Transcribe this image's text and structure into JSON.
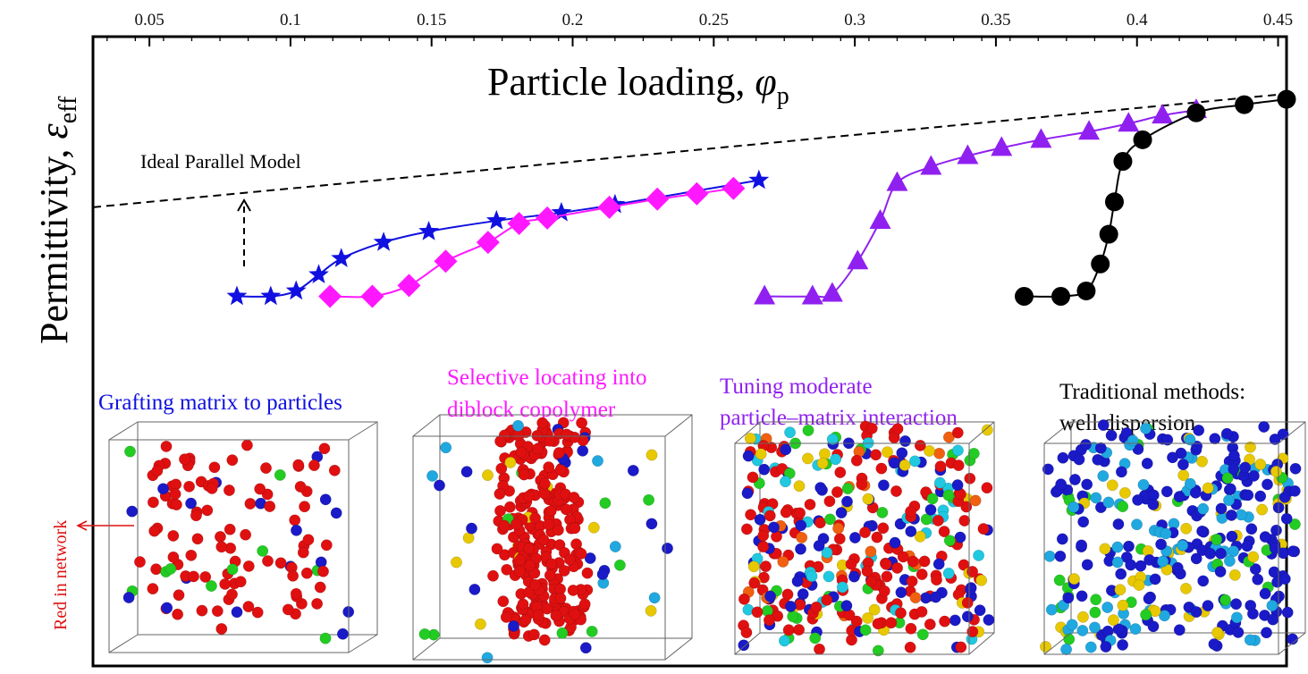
{
  "chart_data": {
    "type": "scatter",
    "title": "",
    "xlabel": "Particle loading, ",
    "xlabel_symbol": "φ",
    "xlabel_sub": "p",
    "ylabel": "Permittivity, ",
    "ylabel_symbol": "ε",
    "ylabel_sub": "eff",
    "x_axis_position": "top",
    "xlim": [
      0.03,
      0.453
    ],
    "ylim": [
      0,
      100
    ],
    "y_ticks_shown": false,
    "grid": false,
    "x_ticks": [
      "0.05",
      "0.1",
      "0.15",
      "0.2",
      "0.25",
      "0.3",
      "0.35",
      "0.4",
      "0.45"
    ],
    "series": [
      {
        "label": "Ideal Parallel Model",
        "style": "dashed",
        "color": "#000000",
        "x": [
          0.03,
          0.453
        ],
        "y": [
          58,
          100
        ]
      },
      {
        "label": "Grafting matrix to particles",
        "marker": "star",
        "color": "#1010e0",
        "x": [
          0.081,
          0.093,
          0.102,
          0.11,
          0.118,
          0.133,
          0.149,
          0.173,
          0.196,
          0.215,
          0.266
        ],
        "y": [
          25,
          25,
          27,
          33,
          39,
          45,
          49,
          53,
          56,
          59,
          68
        ]
      },
      {
        "label": "Selective locating into diblock copolymer",
        "marker": "diamond",
        "color": "#ff18ff",
        "x": [
          0.114,
          0.129,
          0.142,
          0.155,
          0.17,
          0.181,
          0.191,
          0.213,
          0.23,
          0.244,
          0.257
        ],
        "y": [
          25,
          25,
          29,
          38,
          45,
          52,
          54,
          58,
          61,
          63,
          65
        ]
      },
      {
        "label": "Tuning moderate particle–matrix interaction",
        "marker": "triangle",
        "color": "#9020f0",
        "x": [
          0.268,
          0.285,
          0.292,
          0.301,
          0.309,
          0.315,
          0.327,
          0.34,
          0.352,
          0.366,
          0.383,
          0.397,
          0.409,
          0.421
        ],
        "y": [
          25,
          25,
          26,
          38,
          53,
          67,
          73,
          77,
          80,
          83,
          86,
          89,
          92,
          94
        ]
      },
      {
        "label": "Traditional methods: well dispersion",
        "marker": "circle",
        "color": "#000000",
        "x": [
          0.36,
          0.373,
          0.382,
          0.387,
          0.39,
          0.392,
          0.395,
          0.402,
          0.421,
          0.438,
          0.453
        ],
        "y": [
          25,
          25,
          27,
          37,
          48,
          60,
          75,
          83,
          93,
          96,
          98
        ]
      }
    ],
    "annotations": {
      "ideal_model": "Ideal Parallel Model",
      "grafting": "Grafting matrix to particles",
      "selective_1": "Selective locating into",
      "selective_2": "diblock copolymer",
      "tuning_1": "Tuning moderate",
      "tuning_2": "particle–matrix interaction",
      "traditional_1": "Traditional methods:",
      "traditional_2": "well dispersion",
      "red_network": "Red in network"
    }
  },
  "colors": {
    "blue_series": "#1010e0",
    "magenta_series": "#ff18ff",
    "violet_series": "#9020f0",
    "red_particles": "#e01010",
    "red_label": "#dd1111"
  }
}
